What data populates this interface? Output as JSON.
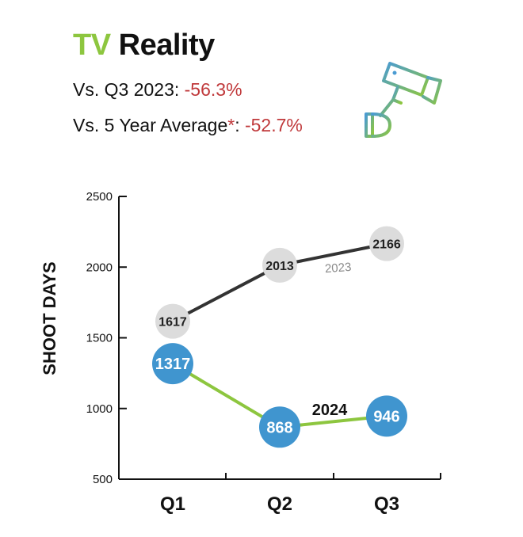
{
  "header": {
    "title_accent": "TV",
    "title_rest": "Reality",
    "stat1_label": "Vs. Q3 2023: ",
    "stat1_value": "-56.3%",
    "stat2_label": "Vs. 5 Year Average",
    "stat2_asterisk": "*",
    "stat2_colon": ": ",
    "stat2_value": "-52.7%",
    "icon": "security-camera-icon"
  },
  "colors": {
    "accent_green": "#8dc63f",
    "accent_blue": "#4a9bd2",
    "negative_red": "#c0393b",
    "series_2023_line": "#333333",
    "series_2023_marker": "#dcdcdc",
    "series_2024_marker": "#4095cf"
  },
  "chart_data": {
    "type": "line",
    "categories": [
      "Q1",
      "Q2",
      "Q3"
    ],
    "ylabel": "SHOOT DAYS",
    "xlabel": "",
    "ylim": [
      500,
      2500
    ],
    "yticks": [
      500,
      1000,
      1500,
      2000,
      2500
    ],
    "series": [
      {
        "name": "2023",
        "values": [
          1617,
          2013,
          2166
        ]
      },
      {
        "name": "2024",
        "values": [
          1317,
          868,
          946
        ]
      }
    ]
  }
}
